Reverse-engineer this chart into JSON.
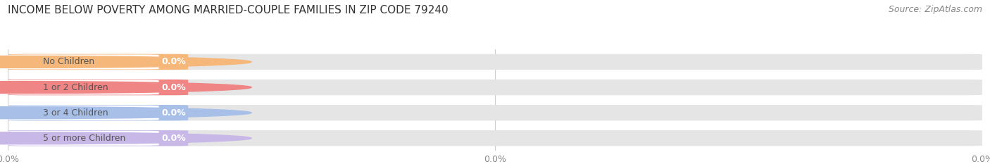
{
  "title": "INCOME BELOW POVERTY AMONG MARRIED-COUPLE FAMILIES IN ZIP CODE 79240",
  "source": "Source: ZipAtlas.com",
  "categories": [
    "No Children",
    "1 or 2 Children",
    "3 or 4 Children",
    "5 or more Children"
  ],
  "values": [
    0.0,
    0.0,
    0.0,
    0.0
  ],
  "bar_colors": [
    "#f5b87a",
    "#f08585",
    "#a8c0e8",
    "#c8b8e8"
  ],
  "bar_bg_color": "#e5e5e5",
  "white_pill_color": "#ffffff",
  "value_text_color": "#ffffff",
  "label_text_color": "#555555",
  "tick_text_color": "#888888",
  "title_color": "#333333",
  "source_color": "#888888",
  "background_color": "#ffffff",
  "title_fontsize": 11,
  "source_fontsize": 9,
  "label_fontsize": 9,
  "value_fontsize": 9,
  "tick_fontsize": 9,
  "figsize": [
    14.06,
    2.33
  ],
  "dpi": 100
}
